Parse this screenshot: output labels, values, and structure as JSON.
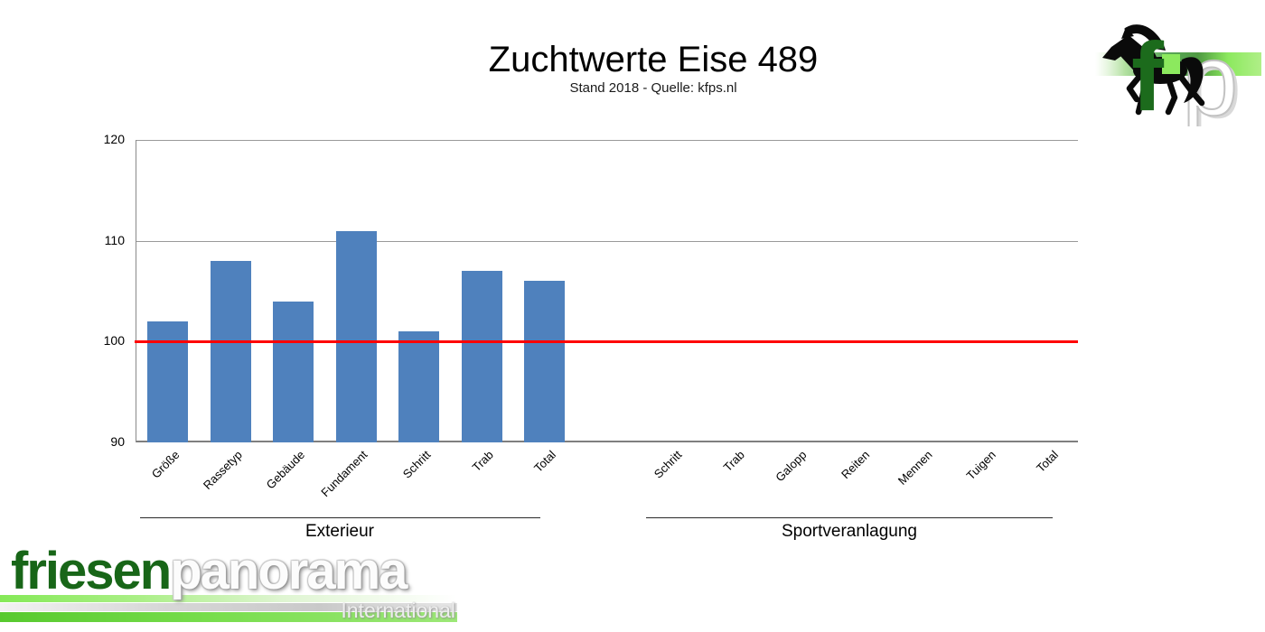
{
  "chart_data": {
    "type": "bar",
    "title": "Zuchtwerte Eise 489",
    "subtitle": "Stand 2018 - Quelle: kfps.nl",
    "xlabel": "",
    "ylabel": "",
    "ylim": [
      90,
      120
    ],
    "yticks": [
      90,
      100,
      110,
      120
    ],
    "grid": "horizontal",
    "legend": "none",
    "bar_color": "#4F81BD",
    "reference_line": {
      "value": 100,
      "color": "#FF0000"
    },
    "groups": [
      {
        "label": "Exterieur",
        "categories": [
          "Größe",
          "Rassetyp",
          "Gebäude",
          "Fundament",
          "Schritt",
          "Trab",
          "Total"
        ],
        "values": [
          102,
          108,
          104,
          111,
          101,
          107,
          106
        ]
      },
      {
        "label": "Sportveranlagung",
        "categories": [
          "Schritt",
          "Trab",
          "Galopp",
          "Reiten",
          "Mennen",
          "Tuigen",
          "Total"
        ],
        "values": [
          null,
          null,
          null,
          null,
          null,
          null,
          null
        ]
      }
    ]
  },
  "branding": {
    "corner_logo": {
      "letter_f": "f",
      "letter_p": "p",
      "horse_icon": "friesian-horse",
      "green": "#1c6b1c"
    },
    "footer_logo": {
      "word_green": "friesen",
      "word_light": "panorama",
      "tagline": "International"
    }
  }
}
